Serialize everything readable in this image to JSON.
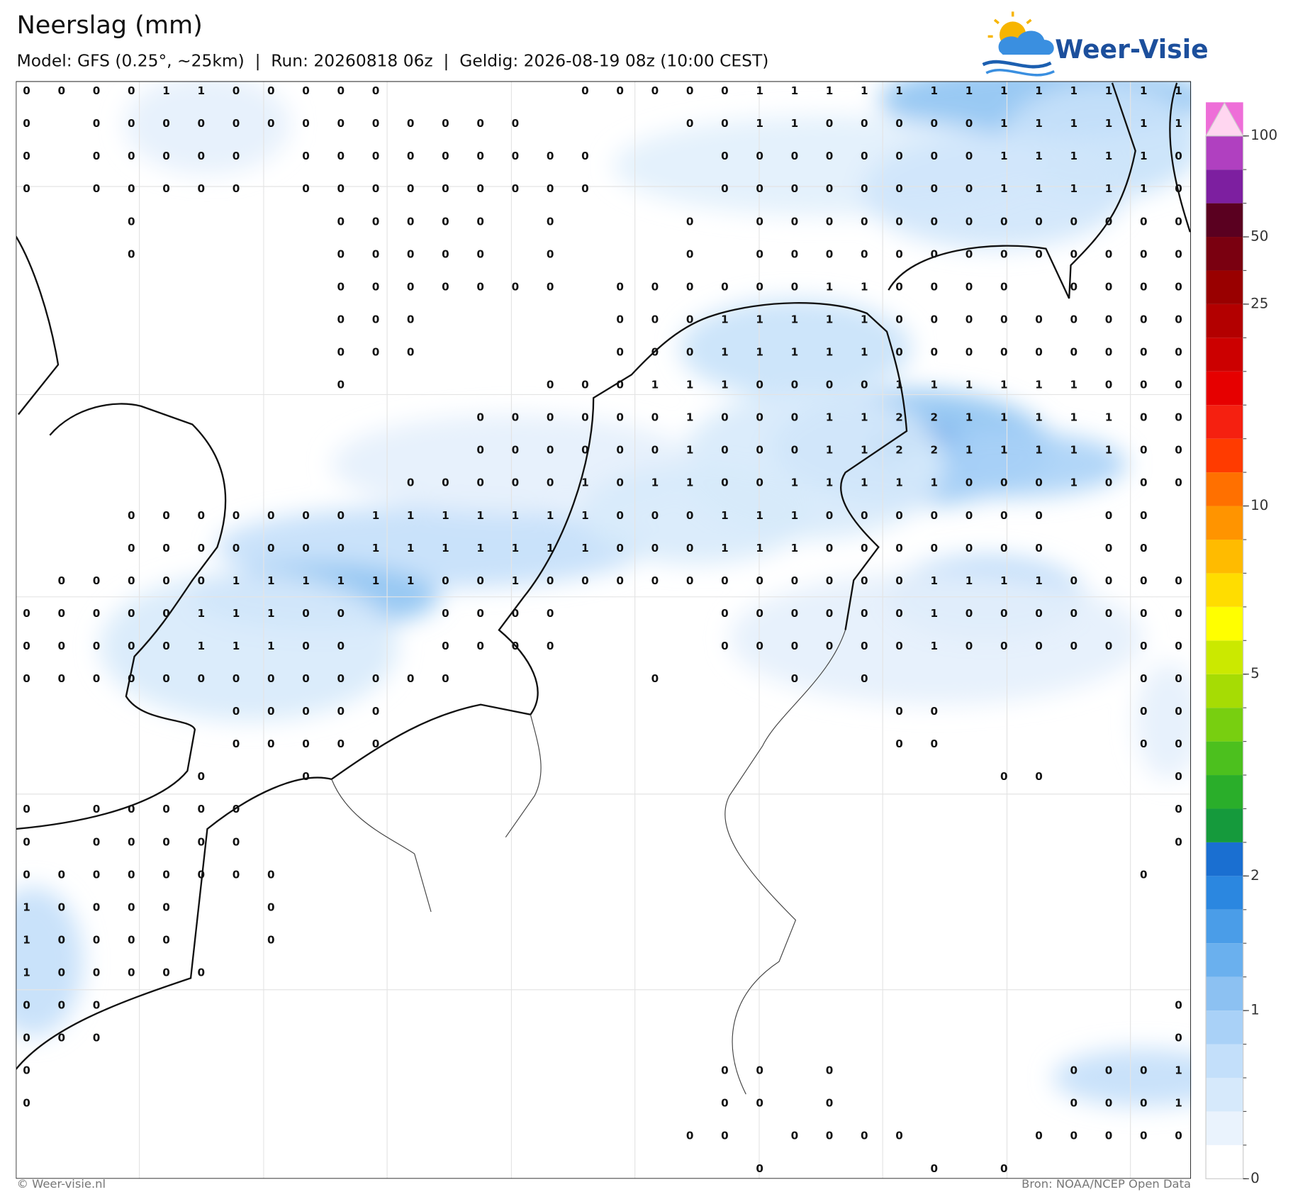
{
  "header": {
    "title": "Neerslag (mm)",
    "subtitle": "Model: GFS (0.25°, ~25km)  |  Run: 20260818 06z  |  Geldig: 2026-08-19 08z (10:00 CEST)"
  },
  "logo": {
    "text": "Weer-Visie"
  },
  "map": {
    "values": [
      [
        0,
        0,
        0,
        0,
        1,
        1,
        0,
        0,
        0,
        0,
        0,
        null,
        null,
        null,
        null,
        null,
        0,
        0,
        0,
        0,
        0,
        1,
        1,
        1,
        1,
        1,
        1,
        1,
        1,
        1,
        1,
        1,
        1,
        1
      ],
      [
        0,
        null,
        0,
        0,
        0,
        0,
        0,
        0,
        0,
        0,
        0,
        0,
        0,
        0,
        0,
        null,
        null,
        null,
        null,
        0,
        0,
        1,
        1,
        0,
        0,
        0,
        0,
        0,
        1,
        1,
        1,
        1,
        1,
        1
      ],
      [
        0,
        null,
        0,
        0,
        0,
        0,
        0,
        null,
        0,
        0,
        0,
        0,
        0,
        0,
        0,
        0,
        0,
        null,
        null,
        null,
        0,
        0,
        0,
        0,
        0,
        0,
        0,
        0,
        1,
        1,
        1,
        1,
        1,
        0
      ],
      [
        0,
        null,
        0,
        0,
        0,
        0,
        0,
        null,
        0,
        0,
        0,
        0,
        0,
        0,
        0,
        0,
        0,
        null,
        null,
        null,
        0,
        0,
        0,
        0,
        0,
        0,
        0,
        0,
        1,
        1,
        1,
        1,
        1,
        0
      ],
      [
        null,
        null,
        null,
        0,
        null,
        null,
        null,
        null,
        null,
        0,
        0,
        0,
        0,
        0,
        null,
        0,
        null,
        null,
        null,
        0,
        null,
        0,
        0,
        0,
        0,
        0,
        0,
        0,
        0,
        0,
        0,
        0,
        0,
        0
      ],
      [
        null,
        null,
        null,
        0,
        null,
        null,
        null,
        null,
        null,
        0,
        0,
        0,
        0,
        0,
        null,
        0,
        null,
        null,
        null,
        0,
        null,
        0,
        0,
        0,
        0,
        0,
        0,
        0,
        0,
        0,
        0,
        0,
        0,
        0
      ],
      [
        null,
        null,
        null,
        null,
        null,
        null,
        null,
        null,
        null,
        0,
        0,
        0,
        0,
        0,
        0,
        0,
        null,
        0,
        0,
        0,
        0,
        0,
        0,
        1,
        1,
        0,
        0,
        0,
        0,
        null,
        0,
        0,
        0,
        0
      ],
      [
        null,
        null,
        null,
        null,
        null,
        null,
        null,
        null,
        null,
        0,
        0,
        0,
        null,
        null,
        null,
        null,
        null,
        0,
        0,
        0,
        1,
        1,
        1,
        1,
        1,
        0,
        0,
        0,
        0,
        0,
        0,
        0,
        0,
        0
      ],
      [
        null,
        null,
        null,
        null,
        null,
        null,
        null,
        null,
        null,
        0,
        0,
        0,
        null,
        null,
        null,
        null,
        null,
        0,
        0,
        0,
        1,
        1,
        1,
        1,
        1,
        0,
        0,
        0,
        0,
        0,
        0,
        0,
        0,
        0
      ],
      [
        null,
        null,
        null,
        null,
        null,
        null,
        null,
        null,
        null,
        0,
        null,
        null,
        null,
        null,
        null,
        0,
        0,
        0,
        1,
        1,
        1,
        0,
        0,
        0,
        0,
        1,
        1,
        1,
        1,
        1,
        1,
        0,
        0,
        0
      ],
      [
        null,
        null,
        null,
        null,
        null,
        null,
        null,
        null,
        null,
        null,
        null,
        null,
        null,
        0,
        0,
        0,
        0,
        0,
        0,
        1,
        0,
        0,
        0,
        1,
        1,
        2,
        2,
        1,
        1,
        1,
        1,
        1,
        0,
        0
      ],
      [
        null,
        null,
        null,
        null,
        null,
        null,
        null,
        null,
        null,
        null,
        null,
        null,
        null,
        0,
        0,
        0,
        0,
        0,
        0,
        1,
        0,
        0,
        0,
        1,
        1,
        2,
        2,
        1,
        1,
        1,
        1,
        1,
        0,
        0
      ],
      [
        null,
        null,
        null,
        null,
        null,
        null,
        null,
        null,
        null,
        null,
        null,
        0,
        0,
        0,
        0,
        0,
        1,
        0,
        1,
        1,
        0,
        0,
        1,
        1,
        1,
        1,
        1,
        0,
        0,
        0,
        1,
        0,
        0,
        0
      ],
      [
        null,
        null,
        null,
        0,
        0,
        0,
        0,
        0,
        0,
        0,
        1,
        1,
        1,
        1,
        1,
        1,
        1,
        0,
        0,
        0,
        1,
        1,
        1,
        0,
        0,
        0,
        0,
        0,
        0,
        0,
        null,
        0,
        0,
        null
      ],
      [
        null,
        null,
        null,
        0,
        0,
        0,
        0,
        0,
        0,
        0,
        1,
        1,
        1,
        1,
        1,
        1,
        1,
        0,
        0,
        0,
        1,
        1,
        1,
        0,
        0,
        0,
        0,
        0,
        0,
        0,
        null,
        0,
        0,
        null
      ],
      [
        null,
        0,
        0,
        0,
        0,
        0,
        1,
        1,
        1,
        1,
        1,
        1,
        0,
        0,
        1,
        0,
        0,
        0,
        0,
        0,
        0,
        0,
        0,
        0,
        0,
        0,
        1,
        1,
        1,
        1,
        0,
        0,
        0,
        0
      ],
      [
        0,
        0,
        0,
        0,
        0,
        1,
        1,
        1,
        0,
        0,
        null,
        null,
        0,
        0,
        0,
        0,
        null,
        null,
        null,
        null,
        0,
        0,
        0,
        0,
        0,
        0,
        1,
        0,
        0,
        0,
        0,
        0,
        0,
        0
      ],
      [
        0,
        0,
        0,
        0,
        0,
        1,
        1,
        1,
        0,
        0,
        null,
        null,
        0,
        0,
        0,
        0,
        null,
        null,
        null,
        null,
        0,
        0,
        0,
        0,
        0,
        0,
        1,
        0,
        0,
        0,
        0,
        0,
        0,
        0
      ],
      [
        0,
        0,
        0,
        0,
        0,
        0,
        0,
        0,
        0,
        0,
        0,
        0,
        0,
        null,
        null,
        null,
        null,
        null,
        0,
        null,
        null,
        null,
        0,
        null,
        0,
        null,
        null,
        null,
        null,
        null,
        null,
        null,
        0,
        0
      ],
      [
        null,
        null,
        null,
        null,
        null,
        null,
        0,
        0,
        0,
        0,
        0,
        null,
        null,
        null,
        null,
        null,
        null,
        null,
        null,
        null,
        null,
        null,
        null,
        null,
        null,
        0,
        0,
        null,
        null,
        null,
        null,
        null,
        0,
        0
      ],
      [
        null,
        null,
        null,
        null,
        null,
        null,
        0,
        0,
        0,
        0,
        0,
        null,
        null,
        null,
        null,
        null,
        null,
        null,
        null,
        null,
        null,
        null,
        null,
        null,
        null,
        0,
        0,
        null,
        null,
        null,
        null,
        null,
        0,
        0
      ],
      [
        null,
        null,
        null,
        null,
        null,
        0,
        null,
        null,
        0,
        null,
        null,
        null,
        null,
        null,
        null,
        null,
        null,
        null,
        null,
        null,
        null,
        null,
        null,
        null,
        null,
        null,
        null,
        null,
        0,
        0,
        null,
        null,
        null,
        0
      ],
      [
        0,
        null,
        0,
        0,
        0,
        0,
        0,
        null,
        null,
        null,
        null,
        null,
        null,
        null,
        null,
        null,
        null,
        null,
        null,
        null,
        null,
        null,
        null,
        null,
        null,
        null,
        null,
        null,
        null,
        null,
        null,
        null,
        null,
        0
      ],
      [
        0,
        null,
        0,
        0,
        0,
        0,
        0,
        null,
        null,
        null,
        null,
        null,
        null,
        null,
        null,
        null,
        null,
        null,
        null,
        null,
        null,
        null,
        null,
        null,
        null,
        null,
        null,
        null,
        null,
        null,
        null,
        null,
        null,
        0
      ],
      [
        0,
        0,
        0,
        0,
        0,
        0,
        0,
        0,
        null,
        null,
        null,
        null,
        null,
        null,
        null,
        null,
        null,
        null,
        null,
        null,
        null,
        null,
        null,
        null,
        null,
        null,
        null,
        null,
        null,
        null,
        null,
        null,
        0,
        null
      ],
      [
        1,
        0,
        0,
        0,
        0,
        null,
        null,
        0,
        null,
        null,
        null,
        null,
        null,
        null,
        null,
        null,
        null,
        null,
        null,
        null,
        null,
        null,
        null,
        null,
        null,
        null,
        null,
        null,
        null,
        null,
        null,
        null,
        null,
        null
      ],
      [
        1,
        0,
        0,
        0,
        0,
        null,
        null,
        0,
        null,
        null,
        null,
        null,
        null,
        null,
        null,
        null,
        null,
        null,
        null,
        null,
        null,
        null,
        null,
        null,
        null,
        null,
        null,
        null,
        null,
        null,
        null,
        null,
        null,
        null
      ],
      [
        1,
        0,
        0,
        0,
        0,
        0,
        null,
        null,
        null,
        null,
        null,
        null,
        null,
        null,
        null,
        null,
        null,
        null,
        null,
        null,
        null,
        null,
        null,
        null,
        null,
        null,
        null,
        null,
        null,
        null,
        null,
        null,
        null,
        null
      ],
      [
        0,
        0,
        0,
        null,
        null,
        null,
        null,
        null,
        null,
        null,
        null,
        null,
        null,
        null,
        null,
        null,
        null,
        null,
        null,
        null,
        null,
        null,
        null,
        null,
        null,
        null,
        null,
        null,
        null,
        null,
        null,
        null,
        null,
        0
      ],
      [
        0,
        0,
        0,
        null,
        null,
        null,
        null,
        null,
        null,
        null,
        null,
        null,
        null,
        null,
        null,
        null,
        null,
        null,
        null,
        null,
        null,
        null,
        null,
        null,
        null,
        null,
        null,
        null,
        null,
        null,
        null,
        null,
        null,
        0
      ],
      [
        0,
        null,
        null,
        null,
        null,
        null,
        null,
        null,
        null,
        null,
        null,
        null,
        null,
        null,
        null,
        null,
        null,
        null,
        null,
        null,
        0,
        0,
        null,
        0,
        null,
        null,
        null,
        null,
        null,
        null,
        0,
        0,
        0,
        1
      ],
      [
        0,
        null,
        null,
        null,
        null,
        null,
        null,
        null,
        null,
        null,
        null,
        null,
        null,
        null,
        null,
        null,
        null,
        null,
        null,
        null,
        0,
        0,
        null,
        0,
        null,
        null,
        null,
        null,
        null,
        null,
        0,
        0,
        0,
        1
      ],
      [
        null,
        null,
        null,
        null,
        null,
        null,
        null,
        null,
        null,
        null,
        null,
        null,
        null,
        null,
        null,
        null,
        null,
        null,
        null,
        0,
        0,
        null,
        0,
        0,
        0,
        0,
        null,
        null,
        null,
        0,
        0,
        0,
        0,
        0
      ],
      [
        null,
        null,
        null,
        null,
        null,
        null,
        null,
        null,
        null,
        null,
        null,
        null,
        null,
        null,
        null,
        null,
        null,
        null,
        null,
        null,
        null,
        0,
        null,
        null,
        null,
        null,
        0,
        null,
        0,
        null,
        null,
        null,
        null,
        null
      ]
    ]
  },
  "colorbar": {
    "levels": [
      0,
      0.1,
      0.2,
      0.3,
      0.5,
      1,
      1.25,
      1.5,
      1.75,
      2,
      2.5,
      3,
      3.5,
      4,
      4.5,
      5,
      6,
      7,
      8,
      9,
      10,
      12,
      14,
      16,
      18,
      20,
      25,
      30,
      50,
      60,
      75,
      100
    ],
    "colors": [
      "#ffffff",
      "#eaf3fd",
      "#d6e9fb",
      "#c3dffa",
      "#a9d1f7",
      "#8cc1f2",
      "#6ab0ee",
      "#4a9de8",
      "#2b87e0",
      "#1a6fd1",
      "#159a3c",
      "#2aae2a",
      "#4cc01e",
      "#78cf10",
      "#a6dc04",
      "#cbe900",
      "#ffff00",
      "#ffdd00",
      "#ffbb00",
      "#ff9400",
      "#ff7000",
      "#ff3b00",
      "#f52010",
      "#e60000",
      "#cc0000",
      "#b30000",
      "#990000",
      "#7a0010",
      "#5a0020",
      "#7d1fa0",
      "#b040c0",
      "#ee6ed8"
    ],
    "over_color": "#ffd6f0",
    "ticks": [
      0,
      1,
      2,
      5,
      10,
      25,
      50,
      100
    ]
  },
  "footer": {
    "left": "© Weer-visie.nl",
    "right": "Bron: NOAA/NCEP Open Data"
  }
}
